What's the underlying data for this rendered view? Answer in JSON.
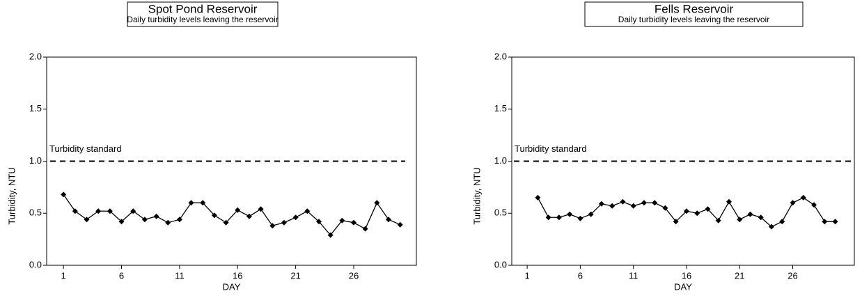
{
  "chart_data": [
    {
      "type": "line",
      "title": "Spot Pond Reservoir",
      "subtitle": "Daily turbidity levels leaving the reservoir",
      "x_label": "DAY",
      "y_label": "Turbidity, NTU",
      "standard": 1.0,
      "standard_label": "Turbidity standard",
      "xlim": [
        -0.45,
        31.4
      ],
      "ylim": [
        0,
        2
      ],
      "xticks": [
        1,
        6,
        11,
        16,
        21,
        26
      ],
      "yticks": [
        {
          "value": 0,
          "label": "0.0"
        },
        {
          "value": 0.5,
          "label": "0.5"
        },
        {
          "value": 1,
          "label": "1.0"
        },
        {
          "value": 1.5,
          "label": "1.5"
        },
        {
          "value": 2,
          "label": "2.0"
        }
      ],
      "series": [
        {
          "name": null,
          "color": "#000000",
          "x": [
            1,
            2,
            3,
            4,
            5,
            6,
            7,
            8,
            9,
            10,
            11,
            12,
            13,
            14,
            15,
            16,
            17,
            18,
            19,
            20,
            21,
            22,
            23,
            24,
            25,
            26,
            27,
            28,
            29,
            30
          ],
          "values": [
            0.68,
            0.52,
            0.44,
            0.52,
            0.52,
            0.42,
            0.52,
            0.44,
            0.47,
            0.41,
            0.44,
            0.6,
            0.6,
            0.48,
            0.41,
            0.53,
            0.47,
            0.54,
            0.38,
            0.41,
            0.46,
            0.52,
            0.42,
            0.29,
            0.43,
            0.41,
            0.35,
            0.6,
            0.44,
            0.39
          ]
        }
      ]
    },
    {
      "type": "line",
      "title": "Fells Reservoir",
      "subtitle": "Daily turbidity levels leaving the reservoir",
      "x_label": "DAY",
      "y_label": "Turbidity, NTU",
      "standard": 1.0,
      "standard_label": "Turbidity standard",
      "xlim": [
        -0.45,
        31.8
      ],
      "ylim": [
        0,
        2
      ],
      "xticks": [
        1,
        6,
        11,
        16,
        21,
        26
      ],
      "yticks": [
        {
          "value": 0,
          "label": "0.0"
        },
        {
          "value": 0.5,
          "label": "0.5"
        },
        {
          "value": 1,
          "label": "1.0"
        },
        {
          "value": 1.5,
          "label": "1.5"
        },
        {
          "value": 2,
          "label": "2.0"
        }
      ],
      "series": [
        {
          "name": null,
          "color": "#000000",
          "x": [
            2,
            3,
            4,
            5,
            6,
            7,
            8,
            9,
            10,
            11,
            12,
            13,
            14,
            15,
            16,
            17,
            18,
            19,
            20,
            21,
            22,
            23,
            24,
            25,
            26,
            27,
            28,
            29,
            30
          ],
          "values": [
            0.65,
            0.46,
            0.46,
            0.49,
            0.45,
            0.49,
            0.59,
            0.57,
            0.61,
            0.57,
            0.6,
            0.6,
            0.55,
            0.42,
            0.52,
            0.5,
            0.54,
            0.43,
            0.61,
            0.44,
            0.49,
            0.46,
            0.37,
            0.42,
            0.6,
            0.65,
            0.58,
            0.42,
            0.42
          ]
        }
      ]
    }
  ]
}
